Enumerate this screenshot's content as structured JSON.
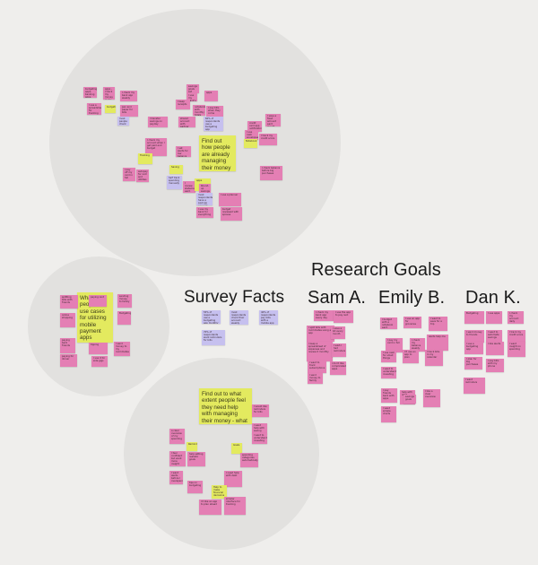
{
  "colors": {
    "background": "#efeeec",
    "cluster": "#e2e1df",
    "pink": "#e47fb4",
    "yellow": "#e3ea5f",
    "purple": "#c6c0ef"
  },
  "headings": {
    "research_goals": "Research Goals",
    "survey_facts": "Survey Facts",
    "sam": "Sam A.",
    "emily": "Emily B.",
    "dan": "Dan K."
  },
  "clusters": {
    "top": {
      "prompt": "Find out how people are already managing their money",
      "notes": [
        {
          "color": "pink",
          "text": "budgeting apps, banking apps, spreadsheets"
        },
        {
          "color": "pink",
          "text": "apps - I track my money in my notes app"
        },
        {
          "color": "pink",
          "text": "I check my bank app weekly"
        },
        {
          "color": "pink",
          "text": "I use a spreadsheet for tracking"
        },
        {
          "color": "yellow",
          "text": "budgeting"
        },
        {
          "color": "pink",
          "text": "pen and paper for bills"
        },
        {
          "color": "pink",
          "text": "savings goals set monthly"
        },
        {
          "color": "pink",
          "text": "I use my bank's app"
        },
        {
          "color": "pink",
          "text": "I keep receipts"
        },
        {
          "color": "pink",
          "text": "apps"
        },
        {
          "color": "pink",
          "text": "notebook with monthly totals"
        },
        {
          "color": "pink",
          "text": "I pay bills when they come"
        },
        {
          "color": "purple",
          "text": "most people check banking app weekly"
        },
        {
          "color": "pink",
          "text": "I check my account when I get paid and budget"
        },
        {
          "color": "pink",
          "text": "I set alerts for low balance"
        },
        {
          "color": "pink",
          "text": "I transfer savings on payday"
        },
        {
          "color": "pink",
          "text": "shared account with partner"
        },
        {
          "color": "purple",
          "text": "60% of respondents use a budgeting app"
        },
        {
          "color": "yellow",
          "text": "Tracking"
        },
        {
          "color": "pink",
          "text": "credit card app notifications"
        },
        {
          "color": "pink",
          "text": "I use cash envelopes"
        },
        {
          "color": "pink",
          "text": "I track my credit score"
        },
        {
          "color": "pink",
          "text": "I save a fixed amount each month"
        },
        {
          "color": "yellow",
          "text": "Notebook"
        },
        {
          "color": "yellow",
          "text": "Saving"
        },
        {
          "color": "purple",
          "text": "half track spending manually"
        },
        {
          "color": "pink",
          "text": "I review statements each month"
        },
        {
          "color": "yellow",
          "text": "apps"
        },
        {
          "color": "pink",
          "text": "Round-up savings in my bank app"
        },
        {
          "color": "pink",
          "text": "I pay off my card in full"
        },
        {
          "color": "pink",
          "text": "autopay for rent and utilities"
        },
        {
          "color": "purple",
          "text": "most respondents have a savings account"
        },
        {
          "color": "pink",
          "text": "I use a planner"
        },
        {
          "color": "pink",
          "text": "budget reviewed with spouse"
        },
        {
          "color": "pink",
          "text": "I use my bank for everything"
        },
        {
          "color": "pink",
          "text": "I check balance before big purchases"
        }
      ]
    },
    "left": {
      "prompt": "What are people's use cases for utilizing mobile payment apps",
      "notes": [
        {
          "color": "pink",
          "text": "splitting bills with friends"
        },
        {
          "color": "pink",
          "text": "paying rent"
        },
        {
          "color": "pink",
          "text": "sending money to family"
        },
        {
          "color": "pink",
          "text": "online shopping"
        },
        {
          "color": "pink",
          "text": "Budgeting"
        },
        {
          "color": "pink",
          "text": "paying back friends"
        },
        {
          "color": "pink",
          "text": "tipping"
        },
        {
          "color": "pink",
          "text": "I send money to my roommates"
        },
        {
          "color": "pink",
          "text": "paying for dinner"
        },
        {
          "color": "pink",
          "text": "I use it for side gigs"
        }
      ]
    },
    "bottom": {
      "prompt": "Find out to what extent people feel they need help with managing their money - what would help them",
      "notes": [
        {
          "color": "pink",
          "text": "I would like reminders for bills"
        },
        {
          "color": "pink",
          "text": "I want help with saving"
        },
        {
          "color": "pink",
          "text": "I want to understand investing"
        },
        {
          "color": "pink",
          "text": "a clear overview of my spending"
        },
        {
          "color": "yellow",
          "text": "Reminders"
        },
        {
          "color": "pink",
          "text": "I feel confident but want more insight"
        },
        {
          "color": "pink",
          "text": "help setting realistic goals"
        },
        {
          "color": "yellow",
          "text": "Goals"
        },
        {
          "color": "pink",
          "text": "spending categories automatically"
        },
        {
          "color": "pink",
          "text": "I need help with debt"
        },
        {
          "color": "pink",
          "text": "I want alerts before I overspend"
        },
        {
          "color": "pink",
          "text": "tips on budgeting"
        },
        {
          "color": "yellow",
          "text": "Help to make financial decisions"
        },
        {
          "color": "pink",
          "text": "I'd like an app to plan ahead"
        },
        {
          "color": "pink",
          "text": "simpler interface for tracking"
        }
      ]
    }
  },
  "survey_facts": [
    {
      "color": "purple",
      "text": "55% of respondents use a budgeting app monthly"
    },
    {
      "color": "purple",
      "text": "most respondents check their account weekly"
    },
    {
      "color": "purple",
      "text": "40% of respondents pay bills with a mobile app"
    },
    {
      "color": "purple",
      "text": "70% of respondents want reminders for bills"
    }
  ],
  "interviews": {
    "sam": [
      {
        "text": "I check my bank app every day"
      },
      {
        "text": "I use the app to pay rent"
      },
      {
        "text": "I split bills with roommates using an app"
      },
      {
        "text": "I save a bit every month"
      },
      {
        "text": "I keep a spreadsheet of expenses and review it monthly"
      },
      {
        "text": "I wish I had reminders"
      },
      {
        "text": "I want to track subscriptions"
      },
      {
        "text": "I don't like complicated apps"
      },
      {
        "text": "I send money to family"
      }
    ],
    "emily": [
      {
        "text": "I budget with a notebook each month"
      },
      {
        "text": "I use an app for groceries"
      },
      {
        "text": "I want to save for a trip"
      },
      {
        "text": "I pay my card in full"
      },
      {
        "text": "I check my balance weekly"
      },
      {
        "text": "alerts help me"
      },
      {
        "text": "I use cash for small things"
      },
      {
        "text": "I'd use an app to plan"
      },
      {
        "text": "I track bills in my calendar"
      },
      {
        "text": "I want to understand investing"
      },
      {
        "text": "I pay friends back with apps"
      },
      {
        "text": "help with debt"
      },
      {
        "text": "I like a clear overview"
      },
      {
        "text": "I want simple charts"
      },
      {
        "text": "savings goals"
      }
    ],
    "dan": [
      {
        "text": "Budgeting"
      },
      {
        "text": "I use apps"
      },
      {
        "text": "I check my account daily"
      },
      {
        "text": "I send money to friends"
      },
      {
        "text": "I want to automate savings"
      },
      {
        "text": "I track my credit score"
      },
      {
        "text": "I use a budgeting app"
      },
      {
        "text": "I like alerts"
      },
      {
        "text": "I want insight on spending"
      },
      {
        "text": "I plan for big purchases"
      },
      {
        "text": "I pay bills with my phone"
      },
      {
        "text": "I want reminders"
      }
    ]
  }
}
